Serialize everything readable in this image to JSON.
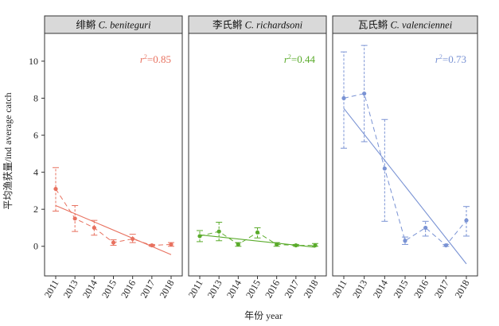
{
  "chart_data": {
    "type": "line",
    "ylabel": "平均渔获量/ind average catch",
    "xlabel": "年份 year",
    "ylim": [
      -1.6,
      11.5
    ],
    "yticks": [
      0,
      2,
      4,
      6,
      8,
      10
    ],
    "x": [
      2011,
      2013,
      2014,
      2015,
      2016,
      2017,
      2018
    ],
    "x_tick_labels": [
      "2011",
      "2013",
      "2014",
      "2015",
      "2016",
      "2017",
      "2018"
    ],
    "grid": false,
    "panels": [
      {
        "title_cn": "绯鳉",
        "title_latin": "C. beniteguri",
        "color": "#e8715f",
        "r2_label": "r²=0.85",
        "r2_sup": "2",
        "r2_value": "=0.85",
        "values": [
          3.1,
          1.5,
          1.0,
          0.2,
          0.4,
          0.05,
          0.1
        ],
        "error_low": [
          1.9,
          0.8,
          0.6,
          0.05,
          0.2,
          0.0,
          0.0
        ],
        "error_high": [
          4.25,
          2.2,
          1.4,
          0.35,
          0.65,
          0.1,
          0.2
        ],
        "trend": [
          2.2,
          -0.45
        ]
      },
      {
        "title_cn": "李氏鳉",
        "title_latin": "C. richardsoni",
        "color": "#5aab2b",
        "r2_label": "r²=0.44",
        "r2_sup": "2",
        "r2_value": "=0.44",
        "values": [
          0.55,
          0.8,
          0.1,
          0.75,
          0.1,
          0.05,
          0.05
        ],
        "error_low": [
          0.25,
          0.3,
          0.0,
          0.45,
          0.0,
          0.0,
          0.0
        ],
        "error_high": [
          0.85,
          1.3,
          0.2,
          1.0,
          0.2,
          0.1,
          0.15
        ],
        "trend": [
          0.62,
          -0.05
        ]
      },
      {
        "title_cn": "瓦氏鳉",
        "title_latin": "C. valenciennei",
        "color": "#7a93d4",
        "r2_label": "r²=0.73",
        "r2_sup": "2",
        "r2_value": "=0.73",
        "values": [
          8.0,
          8.25,
          4.2,
          0.3,
          1.0,
          0.05,
          1.4
        ],
        "error_low": [
          5.3,
          5.65,
          1.35,
          0.1,
          0.55,
          0.0,
          0.55
        ],
        "error_high": [
          10.5,
          10.85,
          6.85,
          0.5,
          1.35,
          0.1,
          2.15
        ],
        "trend": [
          7.45,
          -0.95
        ]
      }
    ]
  }
}
